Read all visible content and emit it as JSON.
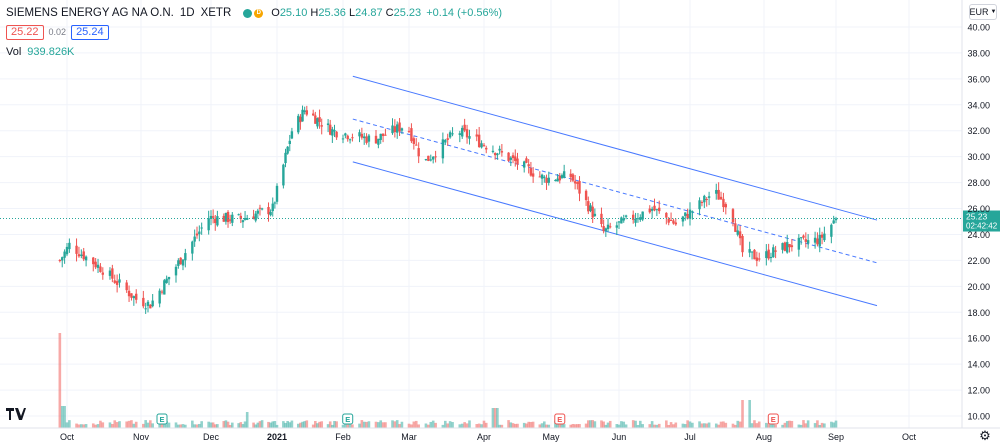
{
  "header": {
    "symbol": "SIEMENS ENERGY AG NA O.N.",
    "interval": "1D",
    "exchange": "XETR",
    "ohlc": {
      "open_label": "O",
      "open": "25.10",
      "high_label": "H",
      "high": "25.36",
      "low_label": "L",
      "low": "24.87",
      "close_label": "C",
      "close": "25.23",
      "change": "+0.14 (+0.56%)"
    },
    "bid": "25.22",
    "spread": "0.02",
    "ask": "25.24",
    "volume_label": "Vol",
    "volume_value": "939.826K",
    "dot_d_label": "D"
  },
  "currency_button": "EUR",
  "price_label": {
    "value": "25.23",
    "countdown": "02:42:42"
  },
  "colors": {
    "up": "#26a69a",
    "down": "#ef5350",
    "channel": "#2962ff",
    "grid": "#f0f3fa",
    "axis_text": "#131722"
  },
  "icons": {
    "logo": "tradingview-logo-icon",
    "settings": "gear-icon",
    "earnings": "earnings-e-icon"
  },
  "chart_data": {
    "type": "candlestick",
    "title": "SIEMENS ENERGY AG NA O.N.",
    "x_tick_labels": [
      "Oct",
      "Nov",
      "Dec",
      "2021",
      "Feb",
      "Mar",
      "Apr",
      "May",
      "Jun",
      "Jul",
      "Aug",
      "Sep",
      "Oct"
    ],
    "y_tick_labels": [
      "10.00",
      "12.00",
      "14.00",
      "16.00",
      "18.00",
      "20.00",
      "22.00",
      "24.00",
      "26.00",
      "28.00",
      "30.00",
      "32.00",
      "34.00",
      "36.00",
      "38.00",
      "40.00"
    ],
    "ylim": [
      9.0,
      41.5
    ],
    "currency": "EUR",
    "last_price": 25.23,
    "earnings_markers": [
      {
        "month": "Nov",
        "label": "E",
        "style": "reported"
      },
      {
        "month": "Feb",
        "label": "E",
        "style": "reported"
      },
      {
        "month": "May",
        "label": "E",
        "style": "upcoming"
      },
      {
        "month": "Aug",
        "label": "E",
        "style": "upcoming"
      }
    ],
    "price_path_keypoints": [
      {
        "date": "2020-09-28",
        "close": 22.0
      },
      {
        "date": "2020-10-02",
        "close": 23.2
      },
      {
        "date": "2020-10-16",
        "close": 21.3
      },
      {
        "date": "2020-10-30",
        "close": 19.0
      },
      {
        "date": "2020-11-05",
        "close": 18.6
      },
      {
        "date": "2020-11-30",
        "close": 25.3
      },
      {
        "date": "2020-12-15",
        "close": 25.2
      },
      {
        "date": "2020-12-30",
        "close": 26.0
      },
      {
        "date": "2021-01-08",
        "close": 32.0
      },
      {
        "date": "2021-01-14",
        "close": 33.6
      },
      {
        "date": "2021-01-27",
        "close": 32.0
      },
      {
        "date": "2021-02-14",
        "close": 31.3
      },
      {
        "date": "2021-02-28",
        "close": 32.5
      },
      {
        "date": "2021-03-07",
        "close": 29.5
      },
      {
        "date": "2021-03-21",
        "close": 32.0
      },
      {
        "date": "2021-04-06",
        "close": 30.5
      },
      {
        "date": "2021-04-28",
        "close": 28.3
      },
      {
        "date": "2021-05-10",
        "close": 28.5
      },
      {
        "date": "2021-05-25",
        "close": 24.2
      },
      {
        "date": "2021-06-15",
        "close": 26.0
      },
      {
        "date": "2021-06-25",
        "close": 24.8
      },
      {
        "date": "2021-07-05",
        "close": 26.3
      },
      {
        "date": "2021-07-11",
        "close": 27.3
      },
      {
        "date": "2021-07-18",
        "close": 26.0
      },
      {
        "date": "2021-07-23",
        "close": 22.6
      },
      {
        "date": "2021-07-30",
        "close": 22.2
      },
      {
        "date": "2021-08-12",
        "close": 23.2
      },
      {
        "date": "2021-08-25",
        "close": 23.6
      },
      {
        "date": "2021-09-01",
        "close": 25.23
      }
    ],
    "channel": {
      "upper": [
        {
          "date": "2021-01-15",
          "price": 36.2
        },
        {
          "date": "2021-10-01",
          "price": 23.6
        }
      ],
      "middle_dashed": [
        {
          "date": "2021-01-15",
          "price": 32.9
        },
        {
          "date": "2021-10-01",
          "price": 20.3
        }
      ],
      "lower": [
        {
          "date": "2021-01-15",
          "price": 29.6
        },
        {
          "date": "2021-10-01",
          "price": 17.0
        }
      ]
    },
    "volume_note": "volume histogram at bottom, largest spike in early Oct 2020 and late Jul 2021"
  }
}
